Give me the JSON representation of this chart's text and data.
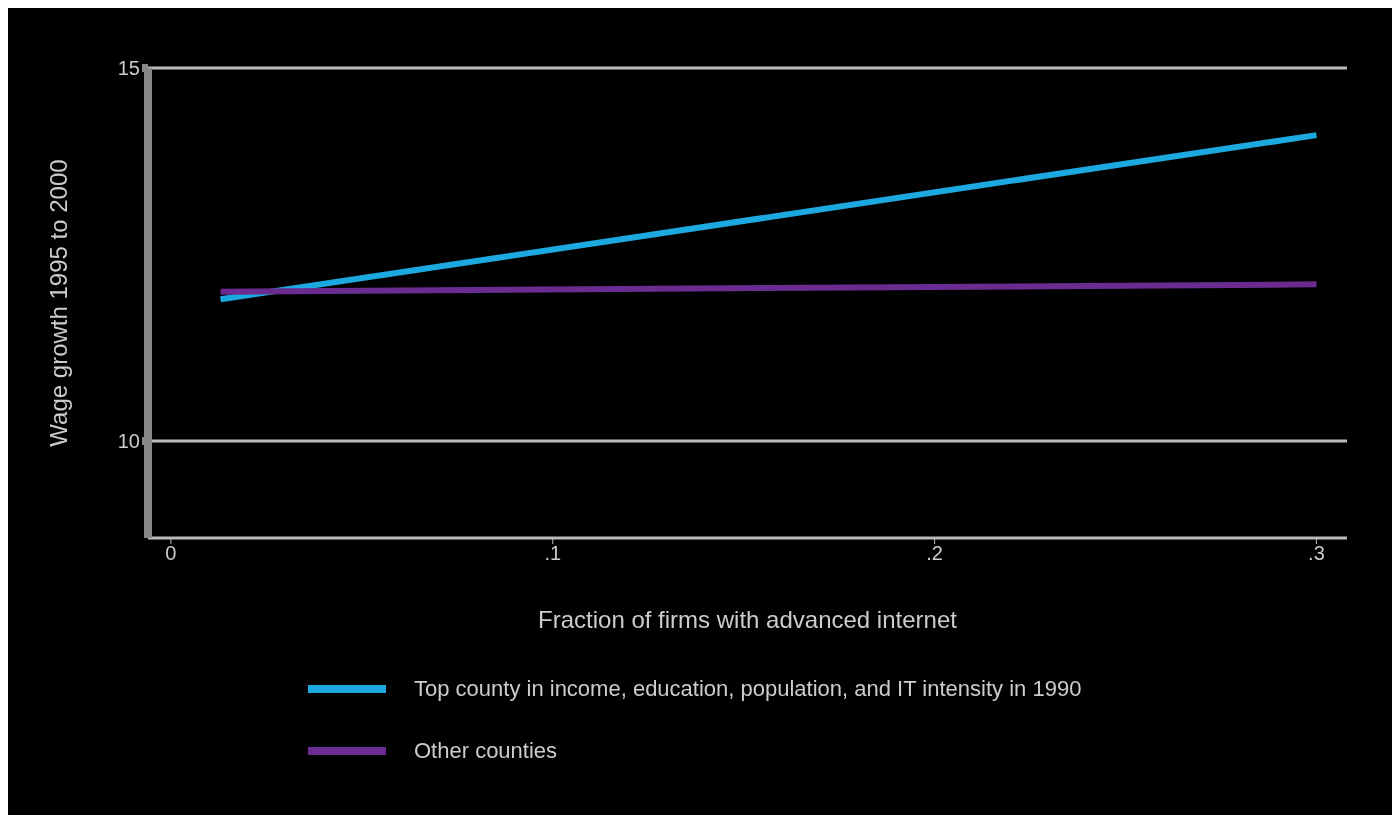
{
  "chart_data": {
    "type": "line",
    "xlabel": "Fraction of firms with advanced internet",
    "ylabel": "Wage growth 1995 to 2000",
    "x": [
      0.013,
      0.3
    ],
    "series": [
      {
        "name": "Top county in income, education, population, and IT intensity in 1990",
        "color": "#1ba9e0",
        "values": [
          11.9,
          14.1
        ]
      },
      {
        "name": "Other counties",
        "color": "#6a2c91",
        "values": [
          12.0,
          12.1
        ]
      }
    ],
    "xlim": [
      -0.006,
      0.308
    ],
    "xticks": [
      {
        "value": 0,
        "label": "0"
      },
      {
        "value": 0.1,
        "label": ".1"
      },
      {
        "value": 0.2,
        "label": ".2"
      },
      {
        "value": 0.3,
        "label": ".3"
      }
    ],
    "ylim": [
      8.7,
      15
    ],
    "yticks": [
      10,
      15
    ],
    "grid": "y",
    "legend": "bottom",
    "marker": "none",
    "line_style": "solid"
  }
}
